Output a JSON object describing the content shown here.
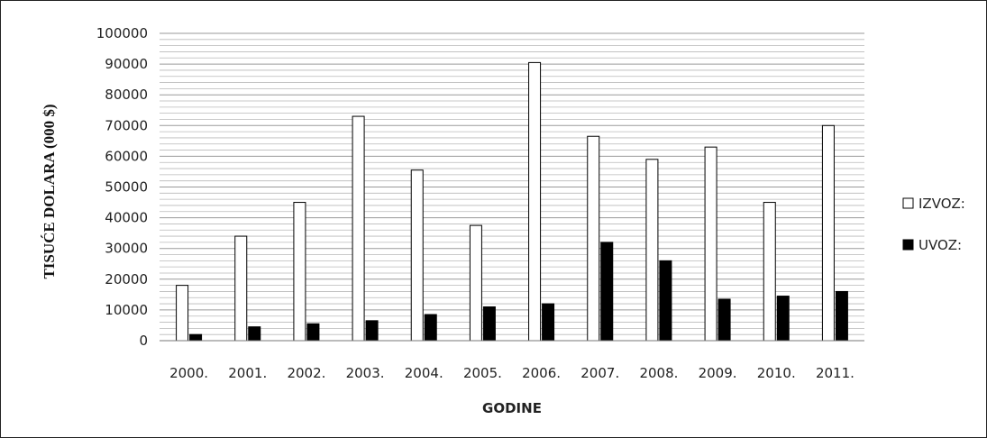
{
  "chart_data": {
    "type": "bar",
    "title": "",
    "xlabel": "GODINE",
    "ylabel": "TISUĆE DOLARA  (000 $)",
    "ylim": [
      0,
      100000
    ],
    "yticks": [
      0,
      10000,
      20000,
      30000,
      40000,
      50000,
      60000,
      70000,
      80000,
      90000,
      100000
    ],
    "categories": [
      "2000.",
      "2001.",
      "2002.",
      "2003.",
      "2004.",
      "2005.",
      "2006.",
      "2007.",
      "2008.",
      "2009.",
      "2010.",
      "2011."
    ],
    "series": [
      {
        "name": "IZVOZ:",
        "color": "#ffffff",
        "values": [
          18000,
          34000,
          45000,
          73000,
          55500,
          37500,
          90500,
          66500,
          59000,
          63000,
          45000,
          70000
        ]
      },
      {
        "name": "UVOZ:",
        "color": "#000000",
        "values": [
          2000,
          4500,
          5500,
          6500,
          8500,
          11000,
          12000,
          32000,
          26000,
          13500,
          14500,
          16000
        ]
      }
    ],
    "grid": "horizontal",
    "legend": "right"
  }
}
